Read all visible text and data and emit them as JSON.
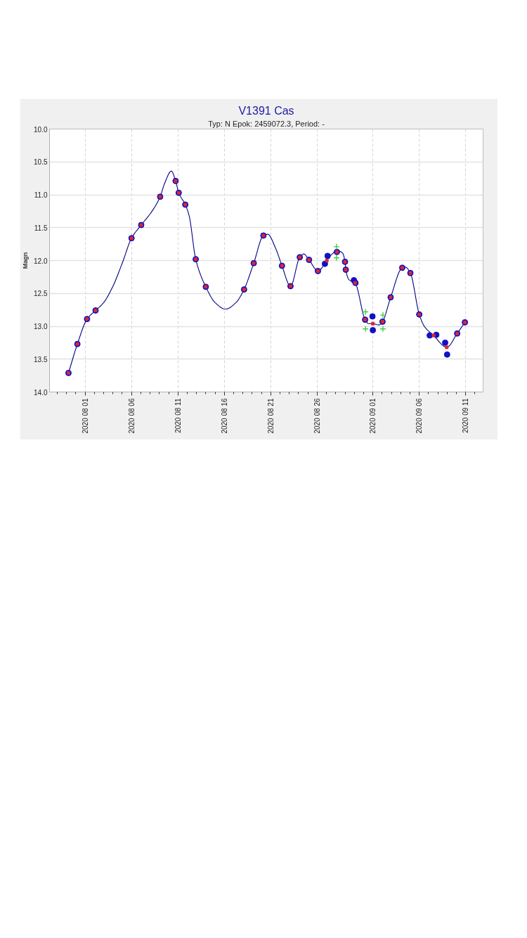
{
  "chart_data": {
    "type": "scatter",
    "title": "V1391 Cas",
    "subtitle": "Typ: N Epok: 2459072.3, Period: -",
    "ylabel": "Magn",
    "xlim": [
      "2020-07-28T04:00",
      "2020-09-12T21:00"
    ],
    "ylim": [
      14.0,
      10.0
    ],
    "xticks": [
      {
        "value": "2020-07-29",
        "label": null
      },
      {
        "value": "2020-07-30",
        "label": null
      },
      {
        "value": "2020-07-31",
        "label": null
      },
      {
        "value": "2020-08-01",
        "label": "2020 08 01"
      },
      {
        "value": "2020-08-02",
        "label": null
      },
      {
        "value": "2020-08-03",
        "label": null
      },
      {
        "value": "2020-08-04",
        "label": null
      },
      {
        "value": "2020-08-05",
        "label": null
      },
      {
        "value": "2020-08-06",
        "label": "2020 08 06"
      },
      {
        "value": "2020-08-07",
        "label": null
      },
      {
        "value": "2020-08-08",
        "label": null
      },
      {
        "value": "2020-08-09",
        "label": null
      },
      {
        "value": "2020-08-10",
        "label": null
      },
      {
        "value": "2020-08-11",
        "label": "2020 08 11"
      },
      {
        "value": "2020-08-12",
        "label": null
      },
      {
        "value": "2020-08-13",
        "label": null
      },
      {
        "value": "2020-08-14",
        "label": null
      },
      {
        "value": "2020-08-15",
        "label": null
      },
      {
        "value": "2020-08-16",
        "label": "2020 08 16"
      },
      {
        "value": "2020-08-17",
        "label": null
      },
      {
        "value": "2020-08-18",
        "label": null
      },
      {
        "value": "2020-08-19",
        "label": null
      },
      {
        "value": "2020-08-20",
        "label": null
      },
      {
        "value": "2020-08-21",
        "label": "2020 08 21"
      },
      {
        "value": "2020-08-22",
        "label": null
      },
      {
        "value": "2020-08-23",
        "label": null
      },
      {
        "value": "2020-08-24",
        "label": null
      },
      {
        "value": "2020-08-25",
        "label": null
      },
      {
        "value": "2020-08-26",
        "label": "2020 08 26"
      },
      {
        "value": "2020-08-27",
        "label": null
      },
      {
        "value": "2020-08-28",
        "label": null
      },
      {
        "value": "2020-08-29",
        "label": null
      },
      {
        "value": "2020-08-30",
        "label": null
      },
      {
        "value": "2020-08-31",
        "label": null
      },
      {
        "value": "2020-09-01",
        "label": "2020 09 01"
      },
      {
        "value": "2020-09-02",
        "label": null
      },
      {
        "value": "2020-09-03",
        "label": null
      },
      {
        "value": "2020-09-04",
        "label": null
      },
      {
        "value": "2020-09-05",
        "label": null
      },
      {
        "value": "2020-09-06",
        "label": "2020 09 06"
      },
      {
        "value": "2020-09-07",
        "label": null
      },
      {
        "value": "2020-09-08",
        "label": null
      },
      {
        "value": "2020-09-09",
        "label": null
      },
      {
        "value": "2020-09-10",
        "label": null
      },
      {
        "value": "2020-09-11",
        "label": "2020 09 11"
      },
      {
        "value": "2020-09-12",
        "label": null
      }
    ],
    "yticks": [
      {
        "value": 10.0,
        "label": "10.0"
      },
      {
        "value": 10.5,
        "label": "10.5"
      },
      {
        "value": 11.0,
        "label": "11.0"
      },
      {
        "value": 11.5,
        "label": "11.5"
      },
      {
        "value": 12.0,
        "label": "12.0"
      },
      {
        "value": 12.5,
        "label": "12.5"
      },
      {
        "value": 13.0,
        "label": "13.0"
      },
      {
        "value": 13.5,
        "label": "13.5"
      },
      {
        "value": 14.0,
        "label": "14.0"
      }
    ],
    "grid": true,
    "series": [
      {
        "type": "line",
        "color": "#000080",
        "marker": "none",
        "line_style": "solid",
        "x": [
          "2020-07-30T05:00",
          "2020-07-31T04:00",
          "2020-08-01T05:00",
          "2020-08-02T03:00",
          "2020-08-03T00:00",
          "2020-08-04T00:00",
          "2020-08-05T00:00",
          "2020-08-06T00:00",
          "2020-08-07T01:00",
          "2020-08-08T05:00",
          "2020-08-09T02:00",
          "2020-08-09T14:00",
          "2020-08-10T07:00",
          "2020-08-10T18:00",
          "2020-08-11T02:00",
          "2020-08-11T19:00",
          "2020-08-12T05:00",
          "2020-08-12T22:00",
          "2020-08-14T00:00",
          "2020-08-15T00:00",
          "2020-08-16T03:00",
          "2020-08-17T06:00",
          "2020-08-18T03:00",
          "2020-08-19T04:00",
          "2020-08-20T05:00",
          "2020-08-20T16:00",
          "2020-08-21T13:00",
          "2020-08-22T05:00",
          "2020-08-23T03:00",
          "2020-08-24T03:00",
          "2020-08-24T13:00",
          "2020-08-25T03:00",
          "2020-08-26T02:00",
          "2020-08-27T01:00",
          "2020-08-27T13:00",
          "2020-08-28T04:00",
          "2020-08-28T18:00",
          "2020-08-29T00:00",
          "2020-08-29T02:00",
          "2020-08-29T10:00",
          "2020-08-30T02:00",
          "2020-08-31T04:00",
          "2020-08-31T13:00",
          "2020-09-01T00:00",
          "2020-09-01T16:00",
          "2020-09-02T01:00",
          "2020-09-02T22:00",
          "2020-09-04T04:00",
          "2020-09-04T12:00",
          "2020-09-05T01:00",
          "2020-09-06T00:00",
          "2020-09-06T13:00",
          "2020-09-07T13:00",
          "2020-09-08T23:00",
          "2020-09-10T02:00",
          "2020-09-10T22:00"
        ],
        "values": [
          13.71,
          13.27,
          12.89,
          12.76,
          12.64,
          12.39,
          12.04,
          11.66,
          11.46,
          11.25,
          11.03,
          10.82,
          10.64,
          10.79,
          10.97,
          11.15,
          11.32,
          11.98,
          12.4,
          12.64,
          12.74,
          12.64,
          12.44,
          12.04,
          11.62,
          11.6,
          11.82,
          12.08,
          12.39,
          11.95,
          11.9,
          11.99,
          12.16,
          12.0,
          11.91,
          11.85,
          11.89,
          12.02,
          12.14,
          12.29,
          12.34,
          12.9,
          12.96,
          12.96,
          12.98,
          12.93,
          12.56,
          12.11,
          12.1,
          12.19,
          12.82,
          13.0,
          13.14,
          13.32,
          13.11,
          12.94
        ]
      },
      {
        "color": "#1010c8",
        "marker": "circle",
        "x": [
          "2020-07-30T05:00",
          "2020-07-31T04:00",
          "2020-08-01T05:00",
          "2020-08-02T03:00",
          "2020-08-06T00:00",
          "2020-08-07T01:00",
          "2020-08-09T02:00",
          "2020-08-10T18:00",
          "2020-08-11T02:00",
          "2020-08-11T19:00",
          "2020-08-12T22:00",
          "2020-08-14T00:00",
          "2020-08-18T03:00",
          "2020-08-19T04:00",
          "2020-08-20T05:00",
          "2020-08-22T05:00",
          "2020-08-23T03:00",
          "2020-08-24T03:00",
          "2020-08-25T03:00",
          "2020-08-26T02:00",
          "2020-08-26T20:00",
          "2020-08-27T03:00",
          "2020-08-28T03:00",
          "2020-08-29T00:00",
          "2020-08-29T02:00",
          "2020-08-29T23:00",
          "2020-08-30T03:00",
          "2020-08-31T04:00",
          "2020-08-31T23:00",
          "2020-09-01T00:00",
          "2020-09-02T01:00",
          "2020-09-02T22:00",
          "2020-09-04T04:00",
          "2020-09-05T01:00",
          "2020-09-06T00:00",
          "2020-09-07T03:00",
          "2020-09-07T20:00",
          "2020-09-08T19:00",
          "2020-09-09T00:00",
          "2020-09-10T02:00",
          "2020-09-10T22:00"
        ],
        "values": [
          13.71,
          13.27,
          12.89,
          12.76,
          11.66,
          11.46,
          11.03,
          10.79,
          10.97,
          11.15,
          11.98,
          12.4,
          12.44,
          12.04,
          11.62,
          12.08,
          12.39,
          11.95,
          11.99,
          12.16,
          12.05,
          11.93,
          11.87,
          12.02,
          12.14,
          12.3,
          12.34,
          12.9,
          12.85,
          13.06,
          12.93,
          12.56,
          12.11,
          12.19,
          12.82,
          13.14,
          13.13,
          13.25,
          13.43,
          13.11,
          12.94
        ]
      },
      {
        "color": "#e02828",
        "marker": "square",
        "x": [
          "2020-07-30T05:00",
          "2020-07-31T04:00",
          "2020-08-01T05:00",
          "2020-08-02T03:00",
          "2020-08-06T00:00",
          "2020-08-07T01:00",
          "2020-08-09T02:00",
          "2020-08-10T18:00",
          "2020-08-11T02:00",
          "2020-08-11T19:00",
          "2020-08-12T22:00",
          "2020-08-14T00:00",
          "2020-08-18T03:00",
          "2020-08-19T04:00",
          "2020-08-20T05:00",
          "2020-08-22T05:00",
          "2020-08-23T03:00",
          "2020-08-24T03:00",
          "2020-08-25T03:00",
          "2020-08-26T02:00",
          "2020-08-27T01:00",
          "2020-08-28T03:00",
          "2020-08-29T00:00",
          "2020-08-29T02:00",
          "2020-08-30T02:00",
          "2020-08-31T04:00",
          "2020-09-01T00:00",
          "2020-09-02T01:00",
          "2020-09-02T22:00",
          "2020-09-04T04:00",
          "2020-09-05T01:00",
          "2020-09-06T00:00",
          "2020-09-07T13:00",
          "2020-09-08T23:00",
          "2020-09-10T02:00",
          "2020-09-10T22:00"
        ],
        "values": [
          13.71,
          13.27,
          12.89,
          12.76,
          11.66,
          11.46,
          11.03,
          10.79,
          10.97,
          11.15,
          11.98,
          12.4,
          12.44,
          12.04,
          11.62,
          12.08,
          12.39,
          11.95,
          11.99,
          12.16,
          12.0,
          11.87,
          12.02,
          12.14,
          12.34,
          12.9,
          12.96,
          12.93,
          12.56,
          12.11,
          12.19,
          12.82,
          13.14,
          13.32,
          13.11,
          12.94
        ]
      },
      {
        "color": "#44cc44",
        "marker": "cross",
        "x": [
          "2020-08-28T02:00",
          "2020-08-28T02:00",
          "2020-08-31T05:00",
          "2020-08-31T05:00",
          "2020-09-02T02:00",
          "2020-09-02T02:00"
        ],
        "values": [
          11.79,
          11.96,
          12.78,
          13.04,
          12.83,
          13.04
        ]
      }
    ]
  }
}
